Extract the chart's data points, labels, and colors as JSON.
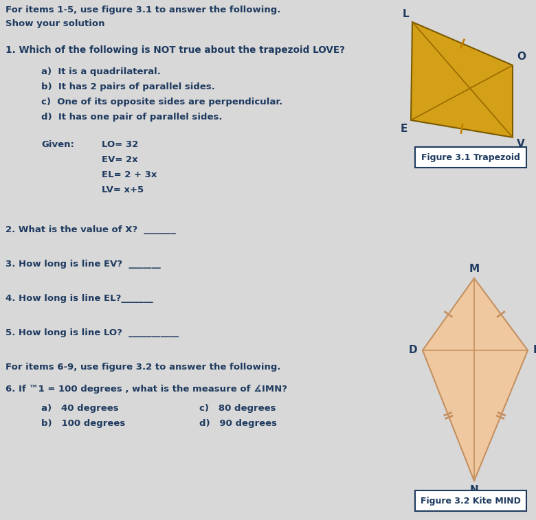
{
  "bg_color": "#d8d8d8",
  "text_color": "#1e3a5f",
  "trapezoid_color": "#d4a017",
  "kite_fill": "#f0c8a0",
  "kite_edge": "#c49060",
  "fig_box_color": "#1e3a5f",
  "title1": "For items 1-5, use figure 3.1 to answer the following.",
  "subtitle1": "Show your solution",
  "q1": "1. Which of the following is NOT true about the trapezoid LOVE?",
  "q1a": "a)  It is a quadrilateral.",
  "q1b": "b)  It has 2 pairs of parallel sides.",
  "q1c": "c)  One of its opposite sides are perpendicular.",
  "q1d": "d)  It has one pair of parallel sides.",
  "given_label": "Given:",
  "given1": "LO= 32",
  "given2": "EV= 2x",
  "given3": "EL= 2 + 3x",
  "given4": "LV= x+5",
  "fig1_caption": "Figure 3.1 Trapezoid",
  "q2": "2. What is the value of X?  _______",
  "q3": "3. How long is line EV?  _______",
  "q4": "4. How long is line EL?_______",
  "q5": "5. How long is line LO?  ___________",
  "title2": "For items 6-9, use figure 3.2 to answer the following.",
  "q6": "6. If ™1 = 100 degrees , what is the measure of ∡IMN?",
  "q6a": "a)   40 degrees",
  "q6c": "c)   80 degrees",
  "q6b": "b)   100 degrees",
  "q6d": "d)   90 degrees",
  "fig2_caption": "Figure 3.2 Kite MIND"
}
